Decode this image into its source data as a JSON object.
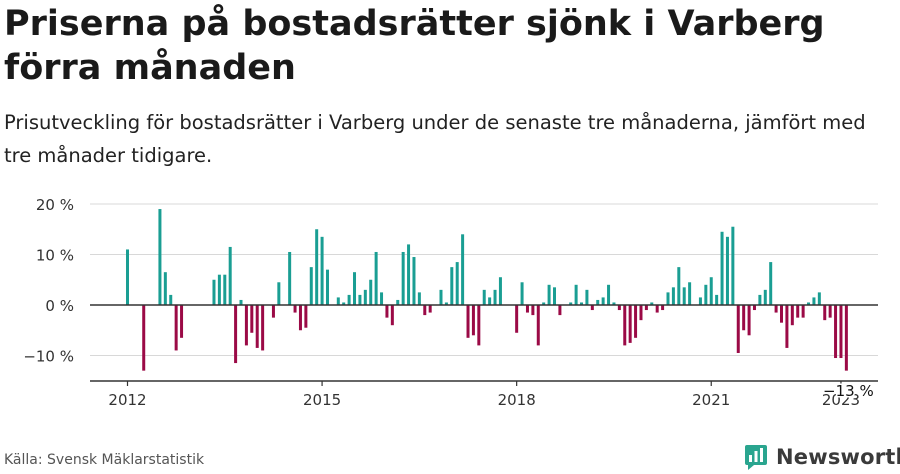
{
  "header": {
    "title": "Priserna på bostadsrätter sjönk i Varberg förra månaden",
    "subtitle": "Prisutveckling för bostadsrätter i Varberg under de senaste tre månaderna, jämfört med tre månader tidigare."
  },
  "footer": {
    "source": "Källa: Svensk Mäklarstatistik",
    "brand": "Newsworthy"
  },
  "colors": {
    "positive": "#1a9e93",
    "negative": "#9b0a46",
    "grid": "#d8d8d8",
    "axis": "#333333",
    "brand_icon": "#2aa58f"
  },
  "chart_data": {
    "type": "bar",
    "x_start": "2012-01",
    "x_interval": "month",
    "ylim": [
      -15,
      22
    ],
    "y_ticks": [
      20,
      10,
      0,
      -10
    ],
    "y_tick_labels": [
      "20 %",
      "10 %",
      "0 %",
      "−10 %"
    ],
    "x_ticks": [
      "2012",
      "2015",
      "2018",
      "2021",
      "2023"
    ],
    "last_value_label": "−13 %",
    "values": [
      11,
      0,
      0,
      -13,
      0,
      0,
      19,
      6.5,
      2,
      -9,
      -6.5,
      0,
      0,
      0,
      0,
      0,
      5,
      6,
      6,
      11.5,
      -11.5,
      1,
      -8,
      -5.5,
      -8.5,
      -9,
      0,
      -2.5,
      4.5,
      0,
      10.5,
      -1.5,
      -5,
      -4.5,
      7.5,
      15,
      13.5,
      7,
      0,
      1.5,
      0.5,
      2,
      6.5,
      2,
      3,
      5,
      10.5,
      2.5,
      -2.5,
      -4,
      1,
      10.5,
      12,
      9.5,
      2.5,
      -2,
      -1.5,
      0,
      3,
      0.5,
      7.5,
      8.5,
      14,
      -6.5,
      -6,
      -8,
      3,
      1.5,
      3,
      5.5,
      0,
      0,
      -5.5,
      4.5,
      -1.5,
      -2,
      -8,
      0.5,
      4,
      3.5,
      -2,
      0,
      0.5,
      4,
      0.5,
      3,
      -1,
      1,
      1.5,
      4,
      0.5,
      -1,
      -8,
      -7.5,
      -6.5,
      -3,
      -1,
      0.5,
      -1.5,
      -1,
      2.5,
      3.5,
      7.5,
      3.5,
      4.5,
      0,
      1.5,
      4,
      5.5,
      2,
      14.5,
      13.5,
      15.5,
      -9.5,
      -5,
      -6,
      -1,
      2,
      3,
      8.5,
      -1.5,
      -3.5,
      -8.5,
      -4,
      -2.5,
      -2.5,
      0.5,
      1.5,
      2.5,
      -3,
      -2.5,
      -10.5,
      -10.5,
      -13
    ]
  }
}
